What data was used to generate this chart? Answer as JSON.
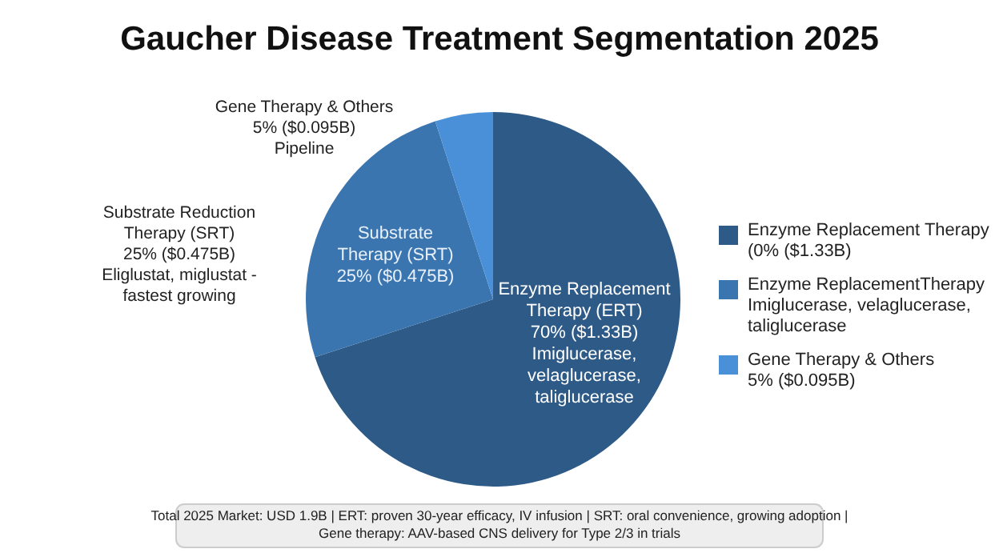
{
  "chart_data": {
    "type": "pie",
    "title": "Gaucher Disease Treatment Segmentation 2025",
    "categories": [
      "Enzyme Replacement Therapy\n(0% ($1.33B)",
      "Enzyme ReplacementTherapy\nImiglucerase, velaglucerase,\ntaliglucerase",
      "Gene Therapy & Others\n5% ($0.095B)"
    ],
    "values": [
      70,
      25,
      5
    ],
    "colors": [
      "#2e5a87",
      "#3a75b0",
      "#4a90d9"
    ],
    "legend": "right",
    "annotations": [
      "Gene Therapy & Others\n5% ($0.095B)\nPipeline",
      "Substrate Reduction\nTherapy (SRT)\n25% ($0.475B)\nEliglustat, miglustat -\nfastest growing",
      "Substrate\nTherapy (SRT)\n25% ($0.475B)",
      "Enzyme Replacement\nTherapy (ERT)\n70% ($1.33B)\nImiglucerase,\nvelaglucerase,\ntaliglucerase",
      "Total 2025 Market: USD 1.9B | ERT: proven 30-year efficacy, IV infusion | SRT: oral convenience, growing adoption |\nGene therapy: AAV-based CNS delivery for Type 2/3 in trials"
    ]
  }
}
